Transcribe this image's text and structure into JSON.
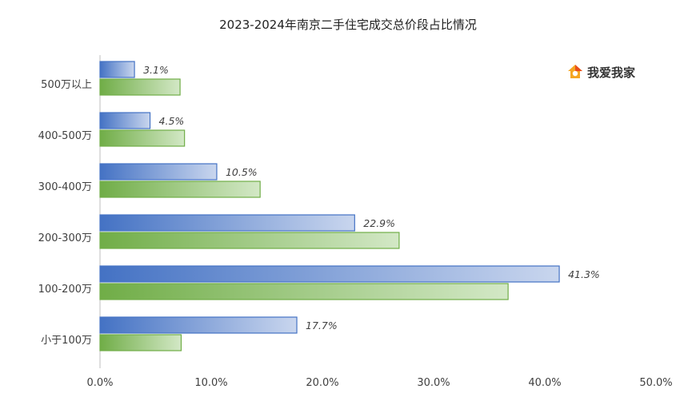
{
  "brand": {
    "name": "我爱我家",
    "icon": "house-logo-icon"
  },
  "colors": {
    "series_2023": "#4472c4",
    "series_2024": "#70ad47",
    "axis": "#bfbfbf",
    "label": "#404040"
  },
  "chart_data": {
    "type": "bar",
    "orientation": "horizontal",
    "title": "2023-2024年南京二手住宅成交总价段占比情况",
    "xlabel": "",
    "ylabel": "",
    "xlim": [
      0,
      50
    ],
    "x_ticks": [
      "0.0%",
      "10.0%",
      "20.0%",
      "30.0%",
      "40.0%",
      "50.0%"
    ],
    "grid": false,
    "legend": "none",
    "categories": [
      "500万以上",
      "400-500万",
      "300-400万",
      "200-300万",
      "100-200万",
      "小于100万"
    ],
    "series": [
      {
        "values": [
          3.1,
          4.5,
          10.5,
          22.9,
          41.3,
          17.7
        ],
        "labels": [
          "3.1%",
          "4.5%",
          "10.5%",
          "22.9%",
          "41.3%",
          "17.7%"
        ]
      },
      {
        "values": [
          7.2,
          7.6,
          14.4,
          26.9,
          36.7,
          7.3
        ],
        "labels": []
      }
    ]
  }
}
